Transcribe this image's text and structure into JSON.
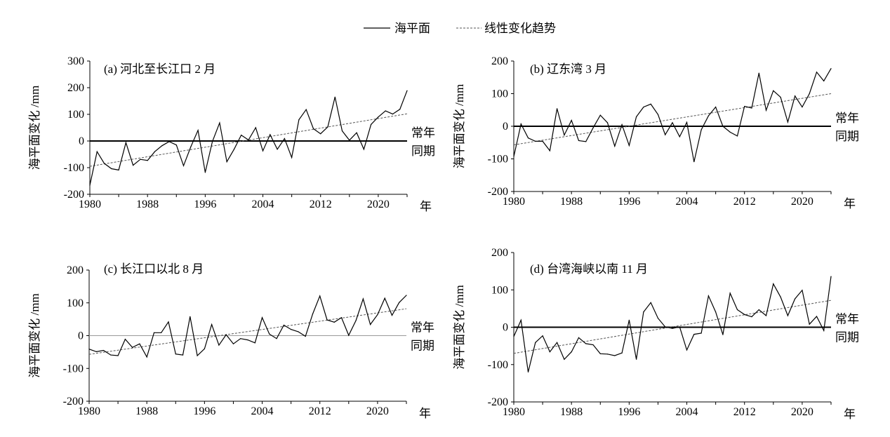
{
  "legend": {
    "series_label": "海平面",
    "trend_label": "线性变化趋势"
  },
  "colors": {
    "series": "#000000",
    "trend": "#555555",
    "zero_thick": "#000000",
    "zero_thin": "#999999"
  },
  "chart_data": [
    {
      "type": "line",
      "title": "(a) 河北至长江口 2 月",
      "ylabel": "海平面变化 /mm",
      "xlabel": "年",
      "baseline_label": [
        "常年",
        "同期"
      ],
      "xlim": [
        1980,
        2024
      ],
      "ylim": [
        -200,
        300
      ],
      "xticks": [
        1980,
        1988,
        1996,
        2004,
        2012,
        2020
      ],
      "yticks": [
        -200,
        -100,
        0,
        100,
        200,
        300
      ],
      "x_start": 1980,
      "values": [
        -166,
        -40,
        -84,
        -104,
        -109,
        -6,
        -91,
        -69,
        -73,
        -40,
        -18,
        -2,
        -15,
        -93,
        -22,
        40,
        -118,
        -2,
        68,
        -78,
        -31,
        22,
        4,
        50,
        -37,
        24,
        -31,
        9,
        -62,
        80,
        118,
        46,
        27,
        53,
        165,
        38,
        3,
        31,
        -31,
        62,
        90,
        113,
        101,
        119,
        189
      ],
      "trend": [
        -95,
        102
      ],
      "zero_line": "thick"
    },
    {
      "type": "line",
      "title": "(b) 辽东湾 3 月",
      "ylabel": "海平面变化 /mm",
      "xlabel": "年",
      "baseline_label": [
        "常年",
        "同期"
      ],
      "xlim": [
        1980,
        2024
      ],
      "ylim": [
        -200,
        200
      ],
      "xticks": [
        1980,
        1988,
        1996,
        2004,
        2012,
        2020
      ],
      "yticks": [
        -200,
        -100,
        0,
        100,
        200
      ],
      "x_start": 1980,
      "values": [
        -93,
        7,
        -36,
        -46,
        -46,
        -75,
        54,
        -27,
        18,
        -44,
        -47,
        -5,
        34,
        11,
        -61,
        5,
        -59,
        29,
        59,
        68,
        36,
        -26,
        11,
        -32,
        12,
        -109,
        -11,
        32,
        59,
        0,
        -18,
        -30,
        61,
        56,
        163,
        49,
        109,
        89,
        13,
        93,
        59,
        100,
        166,
        139,
        177
      ],
      "trend": [
        -57,
        100
      ],
      "zero_line": "thick"
    },
    {
      "type": "line",
      "title": "(c) 长江口以北 8 月",
      "ylabel": "海平面变化 /mm",
      "xlabel": "年",
      "baseline_label": [
        "常年",
        "同期"
      ],
      "xlim": [
        1980,
        2024
      ],
      "ylim": [
        -200,
        200
      ],
      "xticks": [
        1980,
        1988,
        1996,
        2004,
        2012,
        2020
      ],
      "yticks": [
        -200,
        -100,
        0,
        100,
        200
      ],
      "x_start": 1980,
      "values": [
        -41,
        -49,
        -45,
        -59,
        -61,
        -11,
        -36,
        -25,
        -65,
        9,
        9,
        42,
        -56,
        -59,
        58,
        -61,
        -40,
        34,
        -29,
        3,
        -25,
        -9,
        -13,
        -22,
        55,
        5,
        -9,
        32,
        19,
        12,
        -2,
        66,
        121,
        48,
        41,
        55,
        1,
        46,
        112,
        34,
        64,
        114,
        62,
        101,
        123
      ],
      "trend": [
        -57,
        82
      ],
      "zero_line": "thin"
    },
    {
      "type": "line",
      "title": "(d) 台湾海峡以南 11 月",
      "ylabel": "海平面变化 /mm",
      "xlabel": "年",
      "baseline_label": [
        "常年",
        "同期"
      ],
      "xlim": [
        1980,
        2024
      ],
      "ylim": [
        -200,
        200
      ],
      "xticks": [
        1980,
        1988,
        1996,
        2004,
        2012,
        2020
      ],
      "yticks": [
        -200,
        -100,
        0,
        100,
        200
      ],
      "x_start": 1980,
      "values": [
        -25,
        19,
        -120,
        -41,
        -23,
        -66,
        -41,
        -86,
        -66,
        -28,
        -44,
        -47,
        -71,
        -72,
        -76,
        -69,
        19,
        -86,
        41,
        66,
        24,
        1,
        -3,
        1,
        -61,
        -19,
        -16,
        84,
        41,
        -20,
        91,
        47,
        34,
        28,
        47,
        31,
        116,
        81,
        31,
        76,
        99,
        8,
        29,
        -9,
        136
      ],
      "trend": [
        -70,
        72
      ],
      "zero_line": "thick"
    }
  ]
}
